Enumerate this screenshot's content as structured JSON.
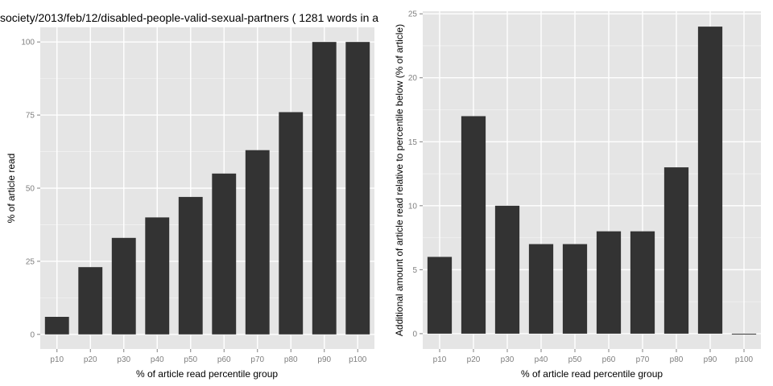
{
  "chart_data": [
    {
      "type": "bar",
      "title": "society/2013/feb/12/disabled-people-valid-sexual-partners ( 1281 words in a",
      "xlabel": "% of article read percentile group",
      "ylabel": "% of article read",
      "categories": [
        "p10",
        "p20",
        "p30",
        "p40",
        "p50",
        "p60",
        "p70",
        "p80",
        "p90",
        "p100"
      ],
      "values": [
        6,
        23,
        33,
        40,
        47,
        55,
        63,
        76,
        100,
        100
      ],
      "yticks": [
        "0",
        "25",
        "50",
        "75",
        "100"
      ],
      "ylim": [
        -5,
        105
      ],
      "grid": true,
      "bar_color": "#333333"
    },
    {
      "type": "bar",
      "title": "",
      "xlabel": "% of article read percentile group",
      "ylabel": "Additional amount of article read relative to percentile below (% of article)",
      "categories": [
        "p10",
        "p20",
        "p30",
        "p40",
        "p50",
        "p60",
        "p70",
        "p80",
        "p90",
        "p100"
      ],
      "values": [
        6,
        17,
        10,
        7,
        7,
        8,
        8,
        13,
        24,
        0
      ],
      "yticks": [
        "0",
        "5",
        "10",
        "15",
        "20",
        "25"
      ],
      "ylim": [
        -1.2,
        25.2
      ],
      "grid": true,
      "bar_color": "#333333"
    }
  ]
}
